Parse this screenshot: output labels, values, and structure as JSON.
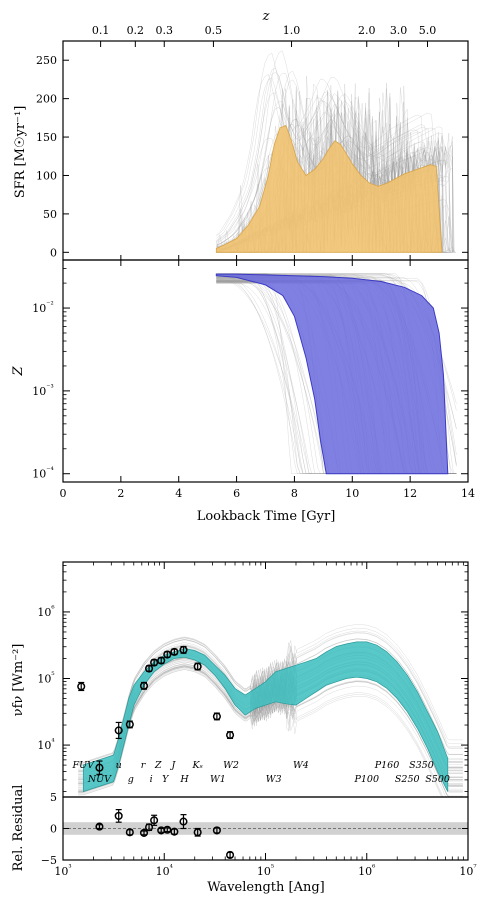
{
  "chart_data": [
    {
      "id": "sfh",
      "type": "area",
      "ylabel": "SFR [M☉yr⁻¹]",
      "top_axis_label": "z",
      "top_ticks": [
        "0.1",
        "0.2",
        "0.3",
        "0.5",
        "1.0",
        "2.0",
        "3.0",
        "5.0"
      ],
      "top_tick_lookback_gyr": [
        1.3,
        2.5,
        3.5,
        5.2,
        7.9,
        10.5,
        11.6,
        12.6
      ],
      "xlim": [
        0,
        14
      ],
      "ylim": [
        -10,
        275
      ],
      "y_ticks": [
        "0",
        "50",
        "100",
        "150",
        "200",
        "250"
      ],
      "colors": {
        "fill": "#f0c270",
        "edge": "#d9a548",
        "samples": "#9a9a9a"
      },
      "series": [
        {
          "x": [
            5.3,
            5.6,
            6.0,
            6.4,
            6.8,
            7.1,
            7.3,
            7.5,
            7.7,
            7.9,
            8.1,
            8.4,
            8.7,
            9.0,
            9.2,
            9.4,
            9.6,
            9.8,
            10.0,
            10.3,
            10.6,
            10.9,
            11.2,
            11.5,
            11.8,
            12.1,
            12.4,
            12.7,
            12.9,
            13.1
          ],
          "values": [
            5,
            10,
            18,
            35,
            60,
            100,
            140,
            162,
            165,
            145,
            118,
            100,
            108,
            122,
            135,
            145,
            140,
            128,
            115,
            100,
            90,
            86,
            90,
            96,
            102,
            106,
            110,
            114,
            112,
            0
          ]
        }
      ]
    },
    {
      "id": "metallicity",
      "type": "area",
      "ylabel": "Z",
      "xlabel": "Lookback Time [Gyr]",
      "xlim": [
        0,
        14
      ],
      "x_ticks": [
        "0",
        "2",
        "4",
        "6",
        "8",
        "10",
        "12",
        "14"
      ],
      "ylim_log10": [
        -4.1,
        -1.42
      ],
      "y_ticks": [
        "10⁻⁴",
        "10⁻³",
        "10⁻²"
      ],
      "colors": {
        "fill": "#6a6ade",
        "edge": "#3b3bc4",
        "samples": "#9a9a9a"
      },
      "series": [
        {
          "x_upper": [
            5.3,
            6.0,
            7.0,
            8.0,
            9.0,
            10.0,
            11.0,
            11.8,
            12.4,
            12.8,
            13.0,
            13.15,
            13.3
          ],
          "log10_upper": [
            -1.59,
            -1.59,
            -1.6,
            -1.61,
            -1.62,
            -1.64,
            -1.68,
            -1.75,
            -1.85,
            -2.0,
            -2.3,
            -2.8,
            -4.0
          ],
          "x_lower": [
            5.3,
            6.0,
            7.0,
            7.6,
            8.0,
            8.4,
            8.7,
            8.9,
            9.1,
            13.3
          ],
          "log10_lower": [
            -1.61,
            -1.63,
            -1.72,
            -1.85,
            -2.1,
            -2.6,
            -3.1,
            -3.6,
            -4.0,
            -4.0
          ]
        }
      ]
    },
    {
      "id": "sed",
      "type": "line",
      "xlabel": "Wavelength [Ang]",
      "ylabel": "νfν [Wm⁻²]",
      "xscale": "log",
      "xlim_log10": [
        3,
        7
      ],
      "x_ticks": [
        "10³",
        "10⁴",
        "10⁵",
        "10⁶",
        "10⁷"
      ],
      "ylim_log10": [
        3.22,
        6.75
      ],
      "y_ticks": [
        "10⁴",
        "10⁵",
        "10⁶"
      ],
      "colors": {
        "fill": "#3cbfbf",
        "edge": "#2a9a9a",
        "samples": "#9a9a9a"
      },
      "model_band": {
        "log10_wavelength": [
          3.2,
          3.3,
          3.4,
          3.5,
          3.55,
          3.6,
          3.65,
          3.7,
          3.8,
          3.9,
          4.0,
          4.1,
          4.2,
          4.3,
          4.4,
          4.5,
          4.6,
          4.7,
          4.8,
          4.9,
          5.0,
          5.1,
          5.2,
          5.3,
          5.4,
          5.5,
          5.6,
          5.7,
          5.8,
          5.9,
          6.0,
          6.1,
          6.2,
          6.3,
          6.4,
          6.5,
          6.6,
          6.7,
          6.8
        ],
        "log10_upper": [
          3.7,
          3.75,
          3.8,
          3.85,
          4.1,
          4.4,
          4.7,
          4.9,
          5.1,
          5.25,
          5.35,
          5.4,
          5.45,
          5.42,
          5.35,
          5.2,
          5.05,
          4.85,
          4.75,
          4.85,
          4.95,
          5.1,
          5.15,
          5.2,
          5.25,
          5.3,
          5.4,
          5.48,
          5.52,
          5.55,
          5.55,
          5.5,
          5.4,
          5.25,
          5.05,
          4.8,
          4.5,
          4.2,
          3.8
        ],
        "log10_lower": [
          3.3,
          3.35,
          3.4,
          3.45,
          3.7,
          4.0,
          4.3,
          4.6,
          4.9,
          5.1,
          5.22,
          5.3,
          5.32,
          5.28,
          5.2,
          5.05,
          4.85,
          4.6,
          4.45,
          4.55,
          4.6,
          4.65,
          4.62,
          4.6,
          4.7,
          4.8,
          4.9,
          4.95,
          5.0,
          5.02,
          5.0,
          4.95,
          4.85,
          4.7,
          4.5,
          4.25,
          3.95,
          3.6,
          3.3
        ]
      },
      "observations": {
        "log10_wavelength": [
          3.18,
          3.36,
          3.55,
          3.66,
          3.8,
          3.85,
          3.9,
          3.97,
          4.03,
          4.1,
          4.19,
          4.33,
          4.52,
          4.65
        ],
        "log10_flux": [
          4.88,
          3.66,
          4.22,
          4.31,
          4.89,
          5.15,
          5.24,
          5.27,
          5.36,
          5.4,
          5.43,
          5.18,
          4.43,
          4.15
        ],
        "log10_err": [
          0.06,
          0.1,
          0.12,
          0.05,
          0.05,
          0.04,
          0.04,
          0.04,
          0.04,
          0.04,
          0.05,
          0.05,
          0.05,
          0.05
        ]
      },
      "filters_top": [
        {
          "label": "FUV",
          "log10_wavelength": 3.2
        },
        {
          "label": "u",
          "log10_wavelength": 3.55
        },
        {
          "label": "r",
          "log10_wavelength": 3.79
        },
        {
          "label": "Z",
          "log10_wavelength": 3.94
        },
        {
          "label": "J",
          "log10_wavelength": 4.09
        },
        {
          "label": "Kₛ",
          "log10_wavelength": 4.33
        },
        {
          "label": "W2",
          "log10_wavelength": 4.66
        },
        {
          "label": "W4",
          "log10_wavelength": 5.35
        },
        {
          "label": "P160",
          "log10_wavelength": 6.2
        },
        {
          "label": "S350",
          "log10_wavelength": 6.54
        }
      ],
      "filters_bottom": [
        {
          "label": "NUV",
          "log10_wavelength": 3.36
        },
        {
          "label": "g",
          "log10_wavelength": 3.67
        },
        {
          "label": "i",
          "log10_wavelength": 3.87
        },
        {
          "label": "Y",
          "log10_wavelength": 4.01
        },
        {
          "label": "H",
          "log10_wavelength": 4.2
        },
        {
          "label": "W1",
          "log10_wavelength": 4.53
        },
        {
          "label": "W3",
          "log10_wavelength": 5.08
        },
        {
          "label": "P100",
          "log10_wavelength": 6.0
        },
        {
          "label": "S250",
          "log10_wavelength": 6.4
        },
        {
          "label": "S500",
          "log10_wavelength": 6.7
        }
      ]
    },
    {
      "id": "residual",
      "type": "scatter",
      "ylabel": "Rel. Residual",
      "xscale": "log",
      "xlim_log10": [
        3,
        7
      ],
      "ylim": [
        -5,
        5
      ],
      "y_ticks": [
        "−5",
        "0",
        "5"
      ],
      "band": [
        -1,
        1
      ],
      "colors": {
        "band": "#cccccc",
        "points": "#000000"
      },
      "points": {
        "log10_wavelength": [
          3.36,
          3.55,
          3.66,
          3.8,
          3.85,
          3.9,
          3.97,
          4.03,
          4.1,
          4.19,
          4.33,
          4.52,
          4.65
        ],
        "values": [
          0.3,
          2.0,
          -0.6,
          -0.7,
          0.2,
          1.3,
          -0.3,
          -0.2,
          -0.5,
          1.1,
          -0.6,
          -0.3,
          -4.2
        ],
        "err": [
          0.3,
          1.0,
          0.4,
          0.3,
          0.5,
          0.8,
          0.3,
          0.3,
          0.4,
          1.1,
          0.6,
          0.4,
          0.4
        ]
      }
    }
  ]
}
